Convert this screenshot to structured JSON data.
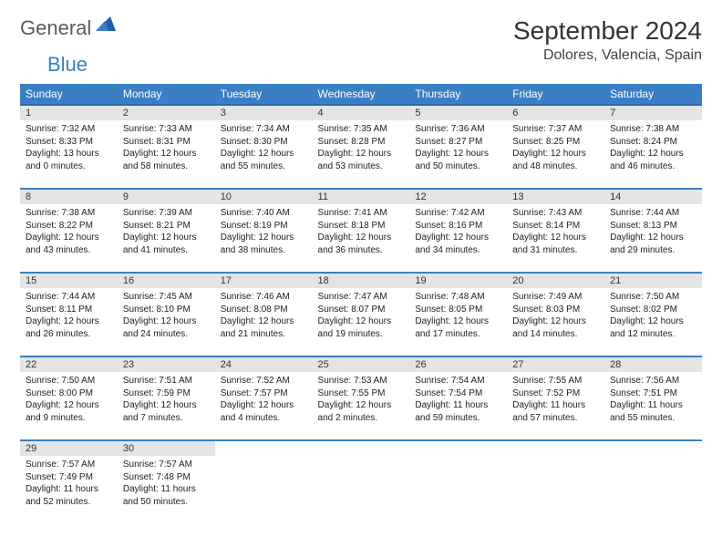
{
  "logo": {
    "general": "General",
    "blue": "Blue"
  },
  "title": "September 2024",
  "location": "Dolores, Valencia, Spain",
  "colors": {
    "header_bg": "#3a7fc4",
    "header_text": "#ffffff",
    "daynum_bg": "#e4e4e4",
    "row_border": "#3a7fc4",
    "logo_gray": "#5a5a5a",
    "logo_blue": "#3a7fc4"
  },
  "weekdays": [
    "Sunday",
    "Monday",
    "Tuesday",
    "Wednesday",
    "Thursday",
    "Friday",
    "Saturday"
  ],
  "weeks": [
    [
      {
        "d": "1",
        "sr": "7:32 AM",
        "ss": "8:33 PM",
        "dl": "13 hours and 0 minutes."
      },
      {
        "d": "2",
        "sr": "7:33 AM",
        "ss": "8:31 PM",
        "dl": "12 hours and 58 minutes."
      },
      {
        "d": "3",
        "sr": "7:34 AM",
        "ss": "8:30 PM",
        "dl": "12 hours and 55 minutes."
      },
      {
        "d": "4",
        "sr": "7:35 AM",
        "ss": "8:28 PM",
        "dl": "12 hours and 53 minutes."
      },
      {
        "d": "5",
        "sr": "7:36 AM",
        "ss": "8:27 PM",
        "dl": "12 hours and 50 minutes."
      },
      {
        "d": "6",
        "sr": "7:37 AM",
        "ss": "8:25 PM",
        "dl": "12 hours and 48 minutes."
      },
      {
        "d": "7",
        "sr": "7:38 AM",
        "ss": "8:24 PM",
        "dl": "12 hours and 46 minutes."
      }
    ],
    [
      {
        "d": "8",
        "sr": "7:38 AM",
        "ss": "8:22 PM",
        "dl": "12 hours and 43 minutes."
      },
      {
        "d": "9",
        "sr": "7:39 AM",
        "ss": "8:21 PM",
        "dl": "12 hours and 41 minutes."
      },
      {
        "d": "10",
        "sr": "7:40 AM",
        "ss": "8:19 PM",
        "dl": "12 hours and 38 minutes."
      },
      {
        "d": "11",
        "sr": "7:41 AM",
        "ss": "8:18 PM",
        "dl": "12 hours and 36 minutes."
      },
      {
        "d": "12",
        "sr": "7:42 AM",
        "ss": "8:16 PM",
        "dl": "12 hours and 34 minutes."
      },
      {
        "d": "13",
        "sr": "7:43 AM",
        "ss": "8:14 PM",
        "dl": "12 hours and 31 minutes."
      },
      {
        "d": "14",
        "sr": "7:44 AM",
        "ss": "8:13 PM",
        "dl": "12 hours and 29 minutes."
      }
    ],
    [
      {
        "d": "15",
        "sr": "7:44 AM",
        "ss": "8:11 PM",
        "dl": "12 hours and 26 minutes."
      },
      {
        "d": "16",
        "sr": "7:45 AM",
        "ss": "8:10 PM",
        "dl": "12 hours and 24 minutes."
      },
      {
        "d": "17",
        "sr": "7:46 AM",
        "ss": "8:08 PM",
        "dl": "12 hours and 21 minutes."
      },
      {
        "d": "18",
        "sr": "7:47 AM",
        "ss": "8:07 PM",
        "dl": "12 hours and 19 minutes."
      },
      {
        "d": "19",
        "sr": "7:48 AM",
        "ss": "8:05 PM",
        "dl": "12 hours and 17 minutes."
      },
      {
        "d": "20",
        "sr": "7:49 AM",
        "ss": "8:03 PM",
        "dl": "12 hours and 14 minutes."
      },
      {
        "d": "21",
        "sr": "7:50 AM",
        "ss": "8:02 PM",
        "dl": "12 hours and 12 minutes."
      }
    ],
    [
      {
        "d": "22",
        "sr": "7:50 AM",
        "ss": "8:00 PM",
        "dl": "12 hours and 9 minutes."
      },
      {
        "d": "23",
        "sr": "7:51 AM",
        "ss": "7:59 PM",
        "dl": "12 hours and 7 minutes."
      },
      {
        "d": "24",
        "sr": "7:52 AM",
        "ss": "7:57 PM",
        "dl": "12 hours and 4 minutes."
      },
      {
        "d": "25",
        "sr": "7:53 AM",
        "ss": "7:55 PM",
        "dl": "12 hours and 2 minutes."
      },
      {
        "d": "26",
        "sr": "7:54 AM",
        "ss": "7:54 PM",
        "dl": "11 hours and 59 minutes."
      },
      {
        "d": "27",
        "sr": "7:55 AM",
        "ss": "7:52 PM",
        "dl": "11 hours and 57 minutes."
      },
      {
        "d": "28",
        "sr": "7:56 AM",
        "ss": "7:51 PM",
        "dl": "11 hours and 55 minutes."
      }
    ],
    [
      {
        "d": "29",
        "sr": "7:57 AM",
        "ss": "7:49 PM",
        "dl": "11 hours and 52 minutes."
      },
      {
        "d": "30",
        "sr": "7:57 AM",
        "ss": "7:48 PM",
        "dl": "11 hours and 50 minutes."
      },
      null,
      null,
      null,
      null,
      null
    ]
  ],
  "labels": {
    "sunrise": "Sunrise:",
    "sunset": "Sunset:",
    "daylight": "Daylight:"
  }
}
